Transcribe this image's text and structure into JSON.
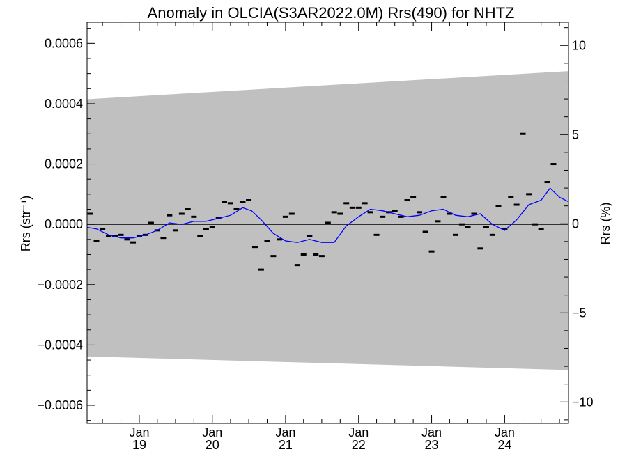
{
  "chart_data": {
    "type": "line",
    "title": "Anomaly in OLCIA(S3AR2022.0M) Rrs(490) for NHTZ",
    "ylabel_left": "Rrs (str⁻¹)",
    "ylabel_right": "Rrs (%)",
    "x_range": [
      "2018-04-15",
      "2024-11-15"
    ],
    "ylim_left": [
      -0.00066,
      0.00067
    ],
    "ylim_right": [
      -11.2,
      11.3
    ],
    "left_ticks": [
      {
        "value": 0.0006,
        "label": "0.0006"
      },
      {
        "value": 0.0004,
        "label": "0.0004"
      },
      {
        "value": 0.0002,
        "label": "0.0002"
      },
      {
        "value": 0.0,
        "label": "0.0000"
      },
      {
        "value": -0.0002,
        "label": "−0.0002"
      },
      {
        "value": -0.0004,
        "label": "−0.0004"
      },
      {
        "value": -0.0006,
        "label": "−0.0006"
      }
    ],
    "right_ticks": [
      {
        "value": 10,
        "label": "10"
      },
      {
        "value": 5,
        "label": "5"
      },
      {
        "value": 0,
        "label": "0"
      },
      {
        "value": -5,
        "label": "−5"
      },
      {
        "value": -10,
        "label": "−10"
      }
    ],
    "x_ticks": [
      {
        "date": "2019-01-01",
        "month": "Jan",
        "year": "19"
      },
      {
        "date": "2020-01-01",
        "month": "Jan",
        "year": "20"
      },
      {
        "date": "2021-01-01",
        "month": "Jan",
        "year": "21"
      },
      {
        "date": "2022-01-01",
        "month": "Jan",
        "year": "22"
      },
      {
        "date": "2023-01-01",
        "month": "Jan",
        "year": "23"
      },
      {
        "date": "2024-01-01",
        "month": "Jan",
        "year": "24"
      }
    ],
    "envelope": {
      "color": "#c0c0c0",
      "x": [
        "2018-04-15",
        "2024-11-15"
      ],
      "upper": [
        0.000415,
        0.000508
      ],
      "lower": [
        -0.000438,
        -0.000483
      ]
    },
    "zero_line": {
      "color": "#000000",
      "value": 0.0
    },
    "series": [
      {
        "kind": "monthly_anomaly_markers",
        "color": "#000000",
        "points": [
          [
            "2018-05-01",
            3.5e-05
          ],
          [
            "2018-06-01",
            -5.5e-05
          ],
          [
            "2018-07-01",
            -1.5e-05
          ],
          [
            "2018-08-01",
            -4e-05
          ],
          [
            "2018-09-01",
            -4e-05
          ],
          [
            "2018-10-01",
            -3.5e-05
          ],
          [
            "2018-11-01",
            -5e-05
          ],
          [
            "2018-12-01",
            -6e-05
          ],
          [
            "2019-01-01",
            -4e-05
          ],
          [
            "2019-02-01",
            -3.5e-05
          ],
          [
            "2019-03-01",
            5e-06
          ],
          [
            "2019-04-01",
            -2e-05
          ],
          [
            "2019-05-01",
            -4.5e-05
          ],
          [
            "2019-06-01",
            3e-05
          ],
          [
            "2019-07-01",
            -2e-05
          ],
          [
            "2019-08-01",
            3.5e-05
          ],
          [
            "2019-09-01",
            5e-05
          ],
          [
            "2019-10-01",
            2.5e-05
          ],
          [
            "2019-11-01",
            -4e-05
          ],
          [
            "2019-12-01",
            -1.5e-05
          ],
          [
            "2020-01-01",
            -1e-05
          ],
          [
            "2020-02-01",
            2e-05
          ],
          [
            "2020-03-01",
            7.5e-05
          ],
          [
            "2020-04-01",
            7e-05
          ],
          [
            "2020-05-01",
            5e-05
          ],
          [
            "2020-06-01",
            7.5e-05
          ],
          [
            "2020-07-01",
            8e-05
          ],
          [
            "2020-08-01",
            -7.5e-05
          ],
          [
            "2020-09-01",
            -0.00015
          ],
          [
            "2020-10-01",
            -5.5e-05
          ],
          [
            "2020-11-01",
            -0.000105
          ],
          [
            "2020-12-01",
            -5e-05
          ],
          [
            "2021-01-01",
            2.5e-05
          ],
          [
            "2021-02-01",
            3.5e-05
          ],
          [
            "2021-03-01",
            -0.000135
          ],
          [
            "2021-04-01",
            -0.0001
          ],
          [
            "2021-05-01",
            -4e-05
          ],
          [
            "2021-06-01",
            -0.0001
          ],
          [
            "2021-07-01",
            -0.000105
          ],
          [
            "2021-08-01",
            5e-06
          ],
          [
            "2021-09-01",
            4e-05
          ],
          [
            "2021-10-01",
            3.5e-05
          ],
          [
            "2021-11-01",
            7e-05
          ],
          [
            "2021-12-01",
            5.5e-05
          ],
          [
            "2022-01-01",
            5.5e-05
          ],
          [
            "2022-02-01",
            7e-05
          ],
          [
            "2022-03-01",
            4e-05
          ],
          [
            "2022-04-01",
            -3.5e-05
          ],
          [
            "2022-05-01",
            2.5e-05
          ],
          [
            "2022-06-01",
            4e-05
          ],
          [
            "2022-07-01",
            4.5e-05
          ],
          [
            "2022-08-01",
            2.5e-05
          ],
          [
            "2022-09-01",
            8e-05
          ],
          [
            "2022-10-01",
            9e-05
          ],
          [
            "2022-11-01",
            4e-05
          ],
          [
            "2022-12-01",
            -2.5e-05
          ],
          [
            "2023-01-01",
            -9e-05
          ],
          [
            "2023-02-01",
            1e-05
          ],
          [
            "2023-03-01",
            9e-05
          ],
          [
            "2023-04-01",
            3.5e-05
          ],
          [
            "2023-05-01",
            -3.5e-05
          ],
          [
            "2023-06-01",
            0.0
          ],
          [
            "2023-07-01",
            -1e-05
          ],
          [
            "2023-08-01",
            3.5e-05
          ],
          [
            "2023-09-01",
            -8e-05
          ],
          [
            "2023-10-01",
            -1e-05
          ],
          [
            "2023-11-01",
            -3.5e-05
          ],
          [
            "2023-12-01",
            6e-05
          ],
          [
            "2024-01-01",
            -1.5e-05
          ],
          [
            "2024-02-01",
            9e-05
          ],
          [
            "2024-03-01",
            6.5e-05
          ],
          [
            "2024-04-01",
            0.0003
          ],
          [
            "2024-05-01",
            0.0001
          ],
          [
            "2024-06-01",
            0.0
          ],
          [
            "2024-07-01",
            -1.5e-05
          ],
          [
            "2024-08-01",
            0.00014
          ],
          [
            "2024-09-01",
            0.0002
          ]
        ]
      },
      {
        "kind": "running_mean_line",
        "color": "#0000ff",
        "points": [
          [
            "2018-04-15",
            -1e-05
          ],
          [
            "2018-06-01",
            -1.5e-05
          ],
          [
            "2018-08-01",
            -3.5e-05
          ],
          [
            "2018-10-01",
            -4.5e-05
          ],
          [
            "2018-12-01",
            -4.5e-05
          ],
          [
            "2019-02-01",
            -3.5e-05
          ],
          [
            "2019-04-01",
            -2e-05
          ],
          [
            "2019-06-01",
            5e-06
          ],
          [
            "2019-08-01",
            0.0
          ],
          [
            "2019-10-01",
            1e-05
          ],
          [
            "2019-12-01",
            1e-05
          ],
          [
            "2020-02-01",
            2e-05
          ],
          [
            "2020-04-01",
            3e-05
          ],
          [
            "2020-06-01",
            5.5e-05
          ],
          [
            "2020-07-15",
            4.5e-05
          ],
          [
            "2020-09-01",
            1.5e-05
          ],
          [
            "2020-11-01",
            -3e-05
          ],
          [
            "2021-01-01",
            -5.5e-05
          ],
          [
            "2021-03-01",
            -6e-05
          ],
          [
            "2021-05-01",
            -5e-05
          ],
          [
            "2021-07-01",
            -6e-05
          ],
          [
            "2021-09-01",
            -6e-05
          ],
          [
            "2021-11-01",
            -5e-06
          ],
          [
            "2022-01-01",
            2.5e-05
          ],
          [
            "2022-03-01",
            5e-05
          ],
          [
            "2022-05-01",
            4.5e-05
          ],
          [
            "2022-07-01",
            3.5e-05
          ],
          [
            "2022-09-01",
            2.5e-05
          ],
          [
            "2022-11-01",
            3e-05
          ],
          [
            "2023-01-01",
            4.5e-05
          ],
          [
            "2023-03-01",
            5e-05
          ],
          [
            "2023-05-01",
            3e-05
          ],
          [
            "2023-07-01",
            2.5e-05
          ],
          [
            "2023-09-01",
            3.5e-05
          ],
          [
            "2023-11-01",
            0.0
          ],
          [
            "2024-01-01",
            -2e-05
          ],
          [
            "2024-03-01",
            1.5e-05
          ],
          [
            "2024-05-01",
            6.5e-05
          ],
          [
            "2024-07-01",
            8e-05
          ],
          [
            "2024-08-15",
            0.00012
          ],
          [
            "2024-10-01",
            9e-05
          ],
          [
            "2024-11-15",
            7.5e-05
          ]
        ]
      }
    ]
  }
}
